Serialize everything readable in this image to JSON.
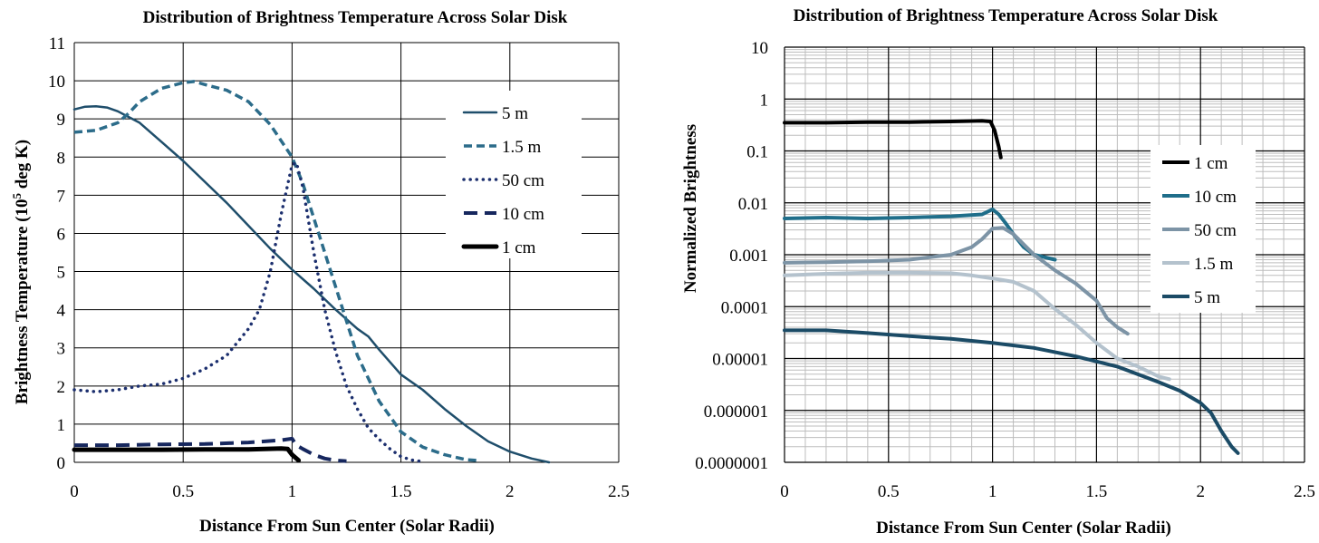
{
  "chart_data": [
    {
      "type": "line",
      "title": "Distribution of Brightness Temperature Across Solar Disk",
      "xlabel": "Distance From Sun Center (Solar Radii)",
      "ylabel_prefix": "Brightness Temperature (10",
      "ylabel_sup": "5",
      "ylabel_suffix": " deg K)",
      "xlim": [
        0,
        2.5
      ],
      "ylim": [
        0,
        11
      ],
      "x_ticks": [
        "0",
        "0.5",
        "1",
        "1.5",
        "2",
        "2.5"
      ],
      "y_ticks": [
        "0",
        "1",
        "2",
        "3",
        "4",
        "5",
        "6",
        "7",
        "8",
        "9",
        "10",
        "11"
      ],
      "grid": true,
      "legend_position": "top-right",
      "series": [
        {
          "name": "5 m",
          "color": "#1f4e6b",
          "style": "solid-thin",
          "x": [
            0,
            0.05,
            0.1,
            0.15,
            0.2,
            0.3,
            0.4,
            0.5,
            0.6,
            0.7,
            0.8,
            0.9,
            1.0,
            1.1,
            1.2,
            1.3,
            1.35,
            1.4,
            1.5,
            1.6,
            1.7,
            1.8,
            1.9,
            2.0,
            2.1,
            2.18
          ],
          "y": [
            9.25,
            9.32,
            9.33,
            9.3,
            9.2,
            8.9,
            8.4,
            7.9,
            7.35,
            6.8,
            6.2,
            5.6,
            5.05,
            4.55,
            4.0,
            3.5,
            3.3,
            2.95,
            2.3,
            1.9,
            1.4,
            0.95,
            0.55,
            0.28,
            0.1,
            0.0
          ]
        },
        {
          "name": "1.5 m",
          "color": "#2c6c8a",
          "style": "dashed",
          "x": [
            0,
            0.1,
            0.2,
            0.25,
            0.3,
            0.4,
            0.5,
            0.55,
            0.6,
            0.7,
            0.8,
            0.9,
            1.0,
            1.05,
            1.1,
            1.2,
            1.3,
            1.4,
            1.5,
            1.6,
            1.7,
            1.8,
            1.85
          ],
          "y": [
            8.65,
            8.7,
            8.9,
            9.15,
            9.45,
            9.8,
            9.95,
            9.98,
            9.9,
            9.75,
            9.45,
            8.85,
            8.0,
            7.3,
            6.4,
            4.6,
            2.8,
            1.6,
            0.8,
            0.4,
            0.2,
            0.07,
            0.05
          ]
        },
        {
          "name": "50 cm",
          "color": "#1c2f6e",
          "style": "dotted",
          "x": [
            0,
            0.1,
            0.2,
            0.3,
            0.4,
            0.5,
            0.6,
            0.7,
            0.8,
            0.85,
            0.9,
            0.95,
            1.0,
            1.02,
            1.05,
            1.1,
            1.15,
            1.2,
            1.25,
            1.3,
            1.35,
            1.4,
            1.45,
            1.5,
            1.55,
            1.6
          ],
          "y": [
            1.9,
            1.85,
            1.9,
            2.0,
            2.05,
            2.2,
            2.45,
            2.8,
            3.5,
            4.0,
            5.0,
            6.5,
            7.8,
            7.85,
            7.2,
            5.5,
            4.0,
            2.9,
            2.0,
            1.4,
            0.9,
            0.6,
            0.35,
            0.15,
            0.06,
            0.02
          ]
        },
        {
          "name": "10 cm",
          "color": "#16275e",
          "style": "long-dash",
          "x": [
            0,
            0.2,
            0.4,
            0.6,
            0.8,
            0.95,
            1.0,
            1.02,
            1.05,
            1.1,
            1.15,
            1.2,
            1.25
          ],
          "y": [
            0.45,
            0.45,
            0.47,
            0.48,
            0.52,
            0.58,
            0.62,
            0.45,
            0.35,
            0.2,
            0.1,
            0.05,
            0.03
          ]
        },
        {
          "name": "1 cm",
          "color": "#000000",
          "style": "solid-thick",
          "x": [
            0,
            0.2,
            0.4,
            0.6,
            0.8,
            0.95,
            0.98,
            1.0,
            1.02,
            1.03
          ],
          "y": [
            0.33,
            0.33,
            0.33,
            0.34,
            0.34,
            0.36,
            0.35,
            0.2,
            0.1,
            0.05
          ]
        }
      ]
    },
    {
      "type": "line",
      "title": "Distribution of Brightness Temperature Across Solar Disk",
      "xlabel": "Distance From Sun Center (Solar Radii)",
      "ylabel": "Normalized Brightness",
      "xlim": [
        0,
        2.5
      ],
      "ylim": [
        1e-07,
        10
      ],
      "yscale": "log",
      "x_ticks": [
        "0",
        "0.5",
        "1",
        "1.5",
        "2",
        "2.5"
      ],
      "y_ticks": [
        "0.0000001",
        "0.000001",
        "0.00001",
        "0.0001",
        "0.001",
        "0.01",
        "0.1",
        "1",
        "10"
      ],
      "grid": true,
      "minor_grid": true,
      "legend_position": "right",
      "series": [
        {
          "name": "1 cm",
          "color": "#000000",
          "x": [
            0,
            0.2,
            0.4,
            0.6,
            0.8,
            0.95,
            0.99,
            1.01,
            1.03,
            1.04
          ],
          "y": [
            0.35,
            0.35,
            0.36,
            0.36,
            0.37,
            0.38,
            0.37,
            0.25,
            0.12,
            0.075
          ]
        },
        {
          "name": "10 cm",
          "color": "#1f6e8a",
          "x": [
            0,
            0.2,
            0.4,
            0.6,
            0.8,
            0.95,
            1.0,
            1.03,
            1.06,
            1.1,
            1.15,
            1.2,
            1.3
          ],
          "y": [
            0.005,
            0.0052,
            0.005,
            0.0052,
            0.0055,
            0.006,
            0.0075,
            0.006,
            0.0042,
            0.0025,
            0.0014,
            0.001,
            0.0008
          ]
        },
        {
          "name": "50 cm",
          "color": "#7d94a6",
          "x": [
            0,
            0.2,
            0.4,
            0.6,
            0.8,
            0.9,
            0.95,
            1.0,
            1.05,
            1.1,
            1.2,
            1.3,
            1.4,
            1.5,
            1.55,
            1.6,
            1.65
          ],
          "y": [
            0.0007,
            0.00072,
            0.00075,
            0.0008,
            0.001,
            0.0014,
            0.002,
            0.0032,
            0.0033,
            0.0025,
            0.001,
            0.0005,
            0.00028,
            0.00013,
            6e-05,
            4e-05,
            3e-05
          ]
        },
        {
          "name": "1.5 m",
          "color": "#b4c2cd",
          "x": [
            0,
            0.2,
            0.4,
            0.6,
            0.8,
            0.9,
            1.0,
            1.1,
            1.2,
            1.3,
            1.4,
            1.5,
            1.6,
            1.7,
            1.8,
            1.85
          ],
          "y": [
            0.0004,
            0.00043,
            0.00045,
            0.00045,
            0.00044,
            0.0004,
            0.00035,
            0.0003,
            0.0002,
            9e-05,
            4.5e-05,
            2e-05,
            1e-05,
            7e-06,
            4.5e-06,
            4e-06
          ]
        },
        {
          "name": "5 m",
          "color": "#1b4b66",
          "x": [
            0,
            0.2,
            0.4,
            0.6,
            0.8,
            1.0,
            1.2,
            1.4,
            1.6,
            1.8,
            1.9,
            2.0,
            2.05,
            2.1,
            2.15,
            2.18
          ],
          "y": [
            3.5e-05,
            3.5e-05,
            3.1e-05,
            2.7e-05,
            2.4e-05,
            2e-05,
            1.6e-05,
            1.1e-05,
            7e-06,
            3.5e-06,
            2.4e-06,
            1.4e-06,
            9e-07,
            4e-07,
            2e-07,
            1.5e-07
          ]
        }
      ]
    }
  ]
}
